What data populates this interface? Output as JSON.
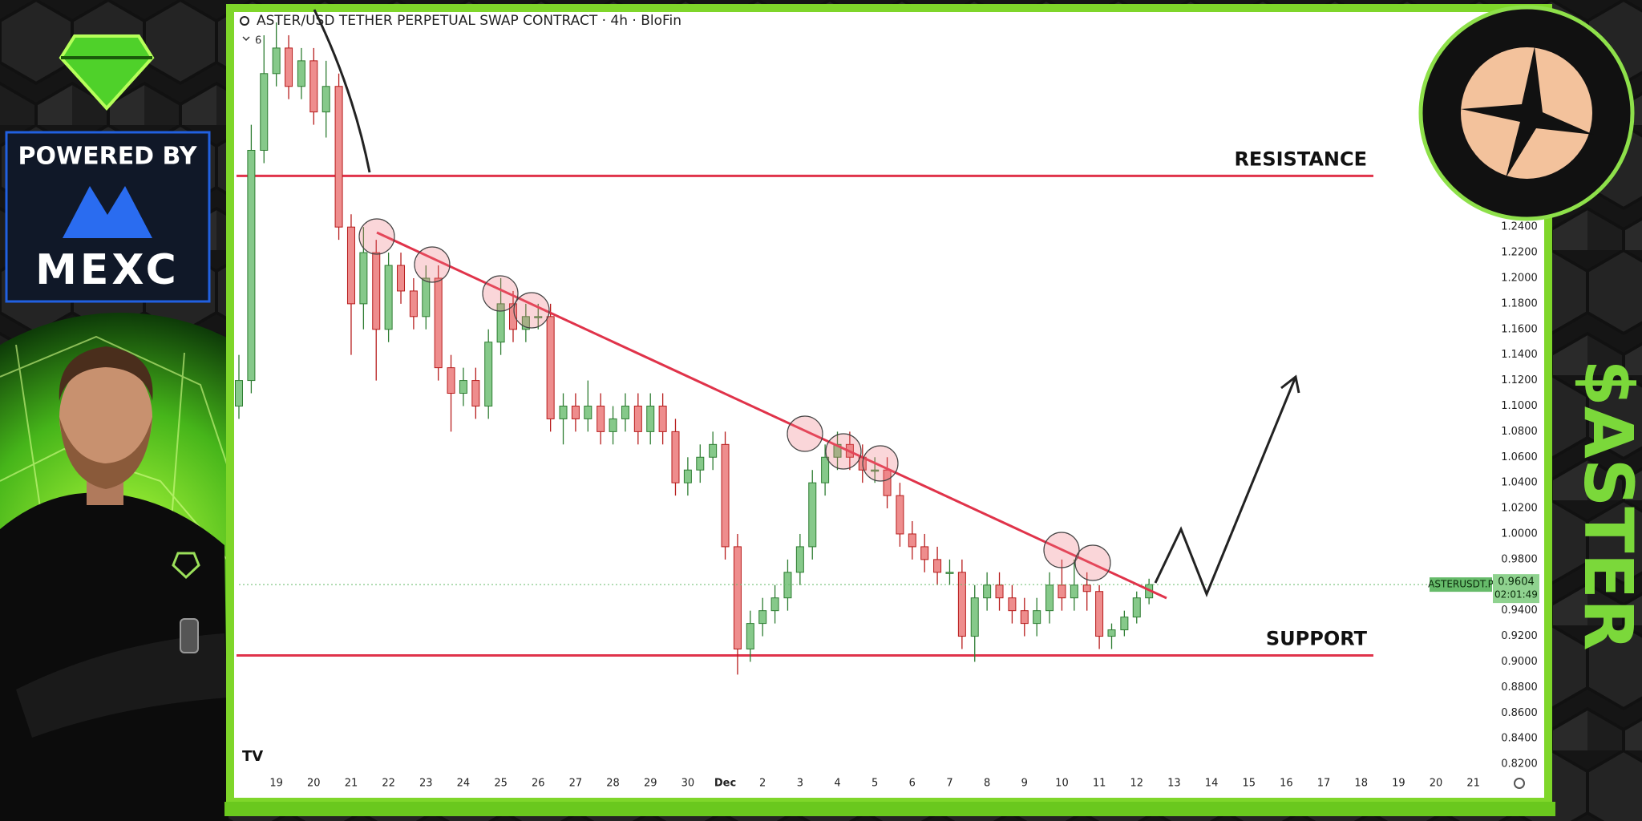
{
  "chart_data": {
    "type": "candlestick",
    "title": "ASTER/USD TETHER PERPETUAL SWAP CONTRACT · 4h · BloFin",
    "indicator_count": 6,
    "symbol": "ASTERUSDT.P",
    "last_price": 0.9604,
    "countdown": "02:01:49",
    "up_color": "#86c98a",
    "down_color": "#ee8d8d",
    "level_color": "#e0334a",
    "grid": false,
    "xlim": [
      0,
      33.5
    ],
    "ylim": [
      0.81,
      1.4
    ],
    "levels": [
      {
        "name": "RESISTANCE",
        "value": 1.28
      },
      {
        "name": "SUPPORT",
        "value": 0.905
      }
    ],
    "x": [
      0,
      0.33,
      0.67,
      1,
      1.33,
      1.67,
      2,
      2.33,
      2.67,
      3,
      3.33,
      3.67,
      4,
      4.33,
      4.67,
      5,
      5.33,
      5.67,
      6,
      6.33,
      6.67,
      7,
      7.33,
      7.67,
      8,
      8.33,
      8.67,
      9,
      9.33,
      9.67,
      10,
      10.33,
      10.67,
      11,
      11.33,
      11.67,
      12,
      12.33,
      12.67,
      13,
      13.33,
      13.67,
      14,
      14.33,
      14.67,
      15,
      15.33,
      15.67,
      16,
      16.33,
      16.67,
      17,
      17.33,
      17.67,
      18,
      18.33,
      18.67,
      19,
      19.33,
      19.67,
      20,
      20.33,
      20.67,
      21,
      21.33,
      21.67,
      22,
      22.33,
      22.67,
      23,
      23.33,
      23.67,
      24,
      24.33
    ],
    "open": [
      1.1,
      1.12,
      1.3,
      1.36,
      1.38,
      1.35,
      1.37,
      1.33,
      1.35,
      1.24,
      1.18,
      1.22,
      1.16,
      1.21,
      1.19,
      1.17,
      1.2,
      1.13,
      1.11,
      1.12,
      1.1,
      1.15,
      1.18,
      1.16,
      1.17,
      1.17,
      1.09,
      1.1,
      1.09,
      1.1,
      1.08,
      1.09,
      1.1,
      1.08,
      1.1,
      1.08,
      1.04,
      1.05,
      1.06,
      1.07,
      0.99,
      0.91,
      0.93,
      0.94,
      0.95,
      0.97,
      0.99,
      1.04,
      1.06,
      1.07,
      1.06,
      1.05,
      1.05,
      1.03,
      1.0,
      0.99,
      0.98,
      0.97,
      0.97,
      0.92,
      0.95,
      0.96,
      0.95,
      0.94,
      0.93,
      0.94,
      0.96,
      0.95,
      0.96,
      0.955,
      0.92,
      0.925,
      0.935,
      0.95
    ],
    "high": [
      1.14,
      1.32,
      1.39,
      1.4,
      1.39,
      1.38,
      1.38,
      1.37,
      1.36,
      1.25,
      1.24,
      1.23,
      1.22,
      1.22,
      1.2,
      1.21,
      1.21,
      1.14,
      1.13,
      1.13,
      1.16,
      1.2,
      1.19,
      1.18,
      1.18,
      1.18,
      1.11,
      1.11,
      1.12,
      1.11,
      1.1,
      1.11,
      1.11,
      1.11,
      1.11,
      1.09,
      1.06,
      1.07,
      1.08,
      1.08,
      1.0,
      0.94,
      0.95,
      0.96,
      0.98,
      1.0,
      1.05,
      1.07,
      1.08,
      1.08,
      1.07,
      1.06,
      1.06,
      1.04,
      1.01,
      1.0,
      0.99,
      0.98,
      0.98,
      0.96,
      0.97,
      0.97,
      0.96,
      0.95,
      0.95,
      0.97,
      0.98,
      0.98,
      0.97,
      0.96,
      0.93,
      0.94,
      0.955,
      0.965
    ],
    "low": [
      1.09,
      1.11,
      1.29,
      1.35,
      1.34,
      1.34,
      1.32,
      1.31,
      1.23,
      1.14,
      1.16,
      1.12,
      1.15,
      1.18,
      1.16,
      1.16,
      1.12,
      1.08,
      1.1,
      1.09,
      1.09,
      1.14,
      1.15,
      1.15,
      1.16,
      1.08,
      1.07,
      1.08,
      1.08,
      1.07,
      1.07,
      1.08,
      1.07,
      1.07,
      1.07,
      1.03,
      1.03,
      1.04,
      1.05,
      0.98,
      0.89,
      0.9,
      0.92,
      0.93,
      0.94,
      0.96,
      0.98,
      1.03,
      1.05,
      1.05,
      1.04,
      1.04,
      1.02,
      0.99,
      0.98,
      0.97,
      0.96,
      0.96,
      0.91,
      0.9,
      0.94,
      0.94,
      0.93,
      0.92,
      0.92,
      0.93,
      0.94,
      0.94,
      0.94,
      0.91,
      0.91,
      0.92,
      0.93,
      0.945
    ],
    "close": [
      1.12,
      1.3,
      1.36,
      1.38,
      1.35,
      1.37,
      1.33,
      1.35,
      1.24,
      1.18,
      1.22,
      1.16,
      1.21,
      1.19,
      1.17,
      1.2,
      1.13,
      1.11,
      1.12,
      1.1,
      1.15,
      1.18,
      1.16,
      1.17,
      1.17,
      1.09,
      1.1,
      1.09,
      1.1,
      1.08,
      1.09,
      1.1,
      1.08,
      1.1,
      1.08,
      1.04,
      1.05,
      1.06,
      1.07,
      0.99,
      0.91,
      0.93,
      0.94,
      0.95,
      0.97,
      0.99,
      1.04,
      1.06,
      1.07,
      1.06,
      1.05,
      1.05,
      1.03,
      1.0,
      0.99,
      0.98,
      0.97,
      0.97,
      0.92,
      0.95,
      0.96,
      0.95,
      0.94,
      0.93,
      0.94,
      0.96,
      0.95,
      0.96,
      0.955,
      0.92,
      0.925,
      0.935,
      0.95,
      0.9604
    ],
    "xticks": [
      {
        "value": 1,
        "label": "19"
      },
      {
        "value": 2,
        "label": "20"
      },
      {
        "value": 3,
        "label": "21"
      },
      {
        "value": 4,
        "label": "22"
      },
      {
        "value": 5,
        "label": "23"
      },
      {
        "value": 6,
        "label": "24"
      },
      {
        "value": 7,
        "label": "25"
      },
      {
        "value": 8,
        "label": "26"
      },
      {
        "value": 9,
        "label": "27"
      },
      {
        "value": 10,
        "label": "28"
      },
      {
        "value": 11,
        "label": "29"
      },
      {
        "value": 12,
        "label": "30"
      },
      {
        "value": 13,
        "label": "Dec"
      },
      {
        "value": 14,
        "label": "2"
      },
      {
        "value": 15,
        "label": "3"
      },
      {
        "value": 16,
        "label": "4"
      },
      {
        "value": 17,
        "label": "5"
      },
      {
        "value": 18,
        "label": "6"
      },
      {
        "value": 19,
        "label": "7"
      },
      {
        "value": 20,
        "label": "8"
      },
      {
        "value": 21,
        "label": "9"
      },
      {
        "value": 22,
        "label": "10"
      },
      {
        "value": 23,
        "label": "11"
      },
      {
        "value": 24,
        "label": "12"
      },
      {
        "value": 25,
        "label": "13"
      },
      {
        "value": 26,
        "label": "14"
      },
      {
        "value": 27,
        "label": "15"
      },
      {
        "value": 28,
        "label": "16"
      },
      {
        "value": 29,
        "label": "17"
      },
      {
        "value": 30,
        "label": "18"
      },
      {
        "value": 31,
        "label": "19"
      },
      {
        "value": 32,
        "label": "20"
      },
      {
        "value": 33,
        "label": "21"
      }
    ],
    "yticks": [
      {
        "value": 0.82,
        "label": "0.8200"
      },
      {
        "value": 0.84,
        "label": "0.8400"
      },
      {
        "value": 0.86,
        "label": "0.8600"
      },
      {
        "value": 0.88,
        "label": "0.8800"
      },
      {
        "value": 0.9,
        "label": "0.9000"
      },
      {
        "value": 0.92,
        "label": "0.9200"
      },
      {
        "value": 0.94,
        "label": "0.9400"
      },
      {
        "value": 0.96,
        "label": "0.9600"
      },
      {
        "value": 0.98,
        "label": "0.9800"
      },
      {
        "value": 1.0,
        "label": "1.0000"
      },
      {
        "value": 1.02,
        "label": "1.0200"
      },
      {
        "value": 1.04,
        "label": "1.0400"
      },
      {
        "value": 1.06,
        "label": "1.0600"
      },
      {
        "value": 1.08,
        "label": "1.0800"
      },
      {
        "value": 1.1,
        "label": "1.1000"
      },
      {
        "value": 1.12,
        "label": "1.1200"
      },
      {
        "value": 1.14,
        "label": "1.1400"
      },
      {
        "value": 1.16,
        "label": "1.1600"
      },
      {
        "value": 1.18,
        "label": "1.1800"
      },
      {
        "value": 1.2,
        "label": "1.2000"
      },
      {
        "value": 1.22,
        "label": "1.2200"
      },
      {
        "value": 1.24,
        "label": "1.2400"
      }
    ]
  },
  "branding": {
    "powered_by": "POWERED BY",
    "sponsor": "MEXC",
    "ticker": "$ASTER"
  }
}
